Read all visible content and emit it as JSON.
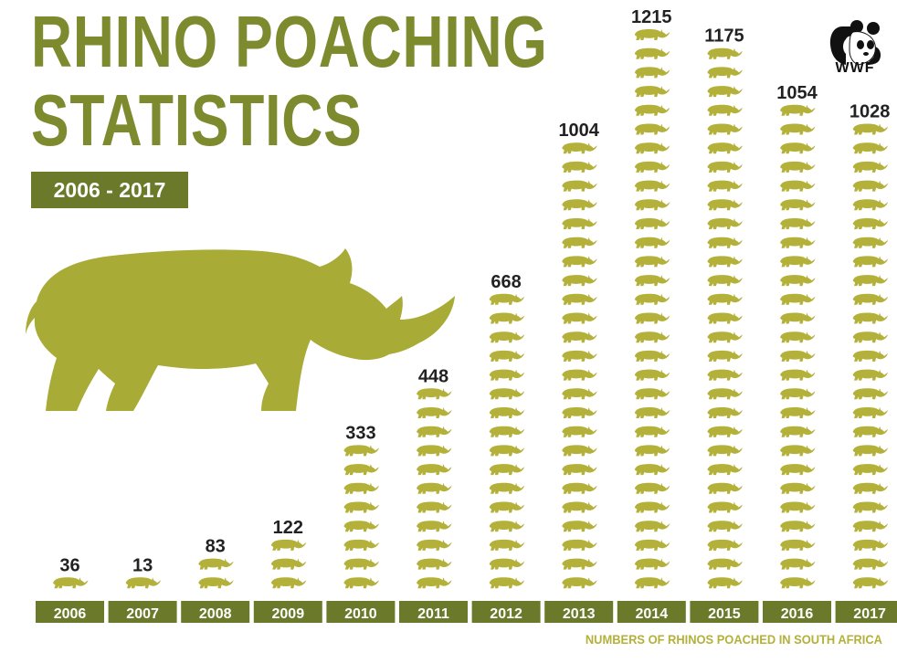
{
  "title": {
    "line1": "RHINO POACHING",
    "line2": "STATISTICS"
  },
  "subtitle_badge": "2006 - 2017",
  "logo_text": "WWF",
  "footer_note": "NUMBERS OF RHINOS POACHED IN SOUTH AFRICA",
  "colors": {
    "title": "#7d8a2e",
    "badge_bg": "#6b7a2a",
    "rhino_icon": "#b4b13a",
    "big_rhino": "#a8ab36",
    "year_bg": "#6b7a2a",
    "footer": "#b4b13a"
  },
  "chart_data": {
    "type": "bar",
    "title": "RHINO POACHING STATISTICS",
    "subtitle": "2006 - 2017",
    "categories": [
      "2006",
      "2007",
      "2008",
      "2009",
      "2010",
      "2011",
      "2012",
      "2013",
      "2014",
      "2015",
      "2016",
      "2017"
    ],
    "values": [
      36,
      13,
      83,
      122,
      333,
      448,
      668,
      1004,
      1215,
      1175,
      1054,
      1028
    ],
    "xlabel": "",
    "ylabel": "",
    "note": "NUMBERS OF RHINOS POACHED IN SOUTH AFRICA",
    "grid": false
  }
}
